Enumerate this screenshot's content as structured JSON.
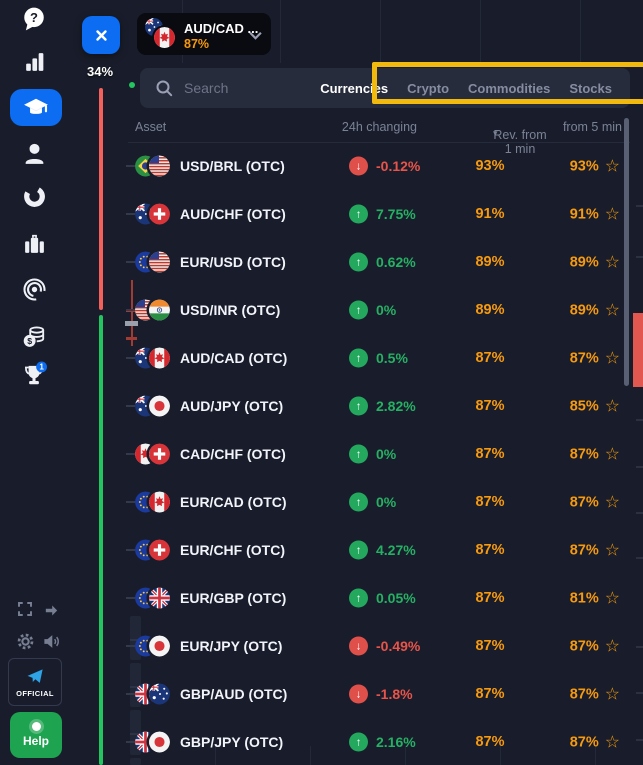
{
  "sidebar": {
    "icons": [
      "help",
      "statistics",
      "education",
      "profile",
      "analytics",
      "portfolio",
      "signals",
      "cashback",
      "tournaments"
    ],
    "tournaments_badge": "1",
    "official_label": "OFFICIAL",
    "help_button_label": "Help"
  },
  "chart": {
    "gauge_value": "34%"
  },
  "asset_dropdown": {
    "label": "AUD/CAD ...",
    "payout": "87%",
    "flags": [
      "AUD",
      "CAD"
    ]
  },
  "panel": {
    "search_placeholder": "Search",
    "tabs": [
      {
        "label": "Currencies",
        "active": true
      },
      {
        "label": "Crypto",
        "active": false
      },
      {
        "label": "Commodities",
        "active": false
      },
      {
        "label": "Stocks",
        "active": false
      }
    ],
    "columns": {
      "asset": "Asset",
      "change": "24h changing",
      "rev_1min": "Rev. from 1 min",
      "rev_5min": "from 5 min"
    },
    "rows": [
      {
        "pair": "USD/BRL (OTC)",
        "flags": [
          "BRL",
          "USD"
        ],
        "direction": "down",
        "change": "-0.12%",
        "rev_1min": "93%",
        "rev_5min": "93%"
      },
      {
        "pair": "AUD/CHF (OTC)",
        "flags": [
          "AUD",
          "CHF"
        ],
        "direction": "up",
        "change": "7.75%",
        "rev_1min": "91%",
        "rev_5min": "91%"
      },
      {
        "pair": "EUR/USD (OTC)",
        "flags": [
          "EUR",
          "USD"
        ],
        "direction": "up",
        "change": "0.62%",
        "rev_1min": "89%",
        "rev_5min": "89%"
      },
      {
        "pair": "USD/INR (OTC)",
        "flags": [
          "USD",
          "INR"
        ],
        "direction": "up",
        "change": "0%",
        "rev_1min": "89%",
        "rev_5min": "89%"
      },
      {
        "pair": "AUD/CAD (OTC)",
        "flags": [
          "AUD",
          "CAD"
        ],
        "direction": "up",
        "change": "0.5%",
        "rev_1min": "87%",
        "rev_5min": "87%"
      },
      {
        "pair": "AUD/JPY (OTC)",
        "flags": [
          "AUD",
          "JPY"
        ],
        "direction": "up",
        "change": "2.82%",
        "rev_1min": "87%",
        "rev_5min": "85%"
      },
      {
        "pair": "CAD/CHF (OTC)",
        "flags": [
          "CAD",
          "CHF"
        ],
        "direction": "up",
        "change": "0%",
        "rev_1min": "87%",
        "rev_5min": "87%"
      },
      {
        "pair": "EUR/CAD (OTC)",
        "flags": [
          "EUR",
          "CAD"
        ],
        "direction": "up",
        "change": "0%",
        "rev_1min": "87%",
        "rev_5min": "87%"
      },
      {
        "pair": "EUR/CHF (OTC)",
        "flags": [
          "EUR",
          "CHF"
        ],
        "direction": "up",
        "change": "4.27%",
        "rev_1min": "87%",
        "rev_5min": "87%"
      },
      {
        "pair": "EUR/GBP (OTC)",
        "flags": [
          "EUR",
          "GBP"
        ],
        "direction": "up",
        "change": "0.05%",
        "rev_1min": "87%",
        "rev_5min": "81%"
      },
      {
        "pair": "EUR/JPY (OTC)",
        "flags": [
          "EUR",
          "JPY"
        ],
        "direction": "down",
        "change": "-0.49%",
        "rev_1min": "87%",
        "rev_5min": "87%"
      },
      {
        "pair": "GBP/AUD (OTC)",
        "flags": [
          "GBP",
          "AUD"
        ],
        "direction": "down",
        "change": "-1.8%",
        "rev_1min": "87%",
        "rev_5min": "87%"
      },
      {
        "pair": "GBP/JPY (OTC)",
        "flags": [
          "GBP",
          "JPY"
        ],
        "direction": "up",
        "change": "2.16%",
        "rev_1min": "87%",
        "rev_5min": "87%"
      }
    ]
  },
  "colors": {
    "background": "#191d2b",
    "accent_blue": "#0c6cf2",
    "up_green": "#23a85e",
    "down_red": "#e8544a",
    "payout_orange": "#f79a0e",
    "annotation_yellow": "#f2ba0f",
    "gauge_red": "#f4605a",
    "gauge_green": "#22c55e"
  }
}
